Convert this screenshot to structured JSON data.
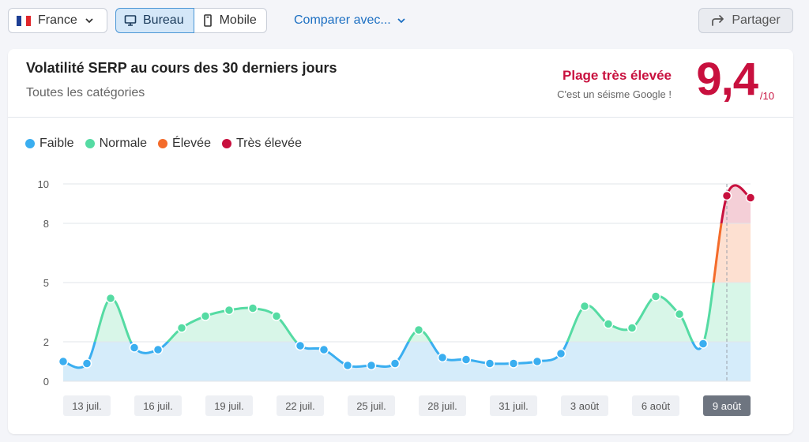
{
  "toolbar": {
    "country": "France",
    "device_desktop": "Bureau",
    "device_mobile": "Mobile",
    "compare": "Comparer avec...",
    "share": "Partager"
  },
  "card": {
    "title": "Volatilité SERP au cours des 30 derniers jours",
    "subtitle": "Toutes les catégories",
    "range_label": "Plage très élevée",
    "range_sub": "C'est un séisme Google !",
    "score": "9,4",
    "score_den": "/10"
  },
  "legend": [
    {
      "label": "Faible",
      "color": "#3aaef0"
    },
    {
      "label": "Normale",
      "color": "#55dba3"
    },
    {
      "label": "Élevée",
      "color": "#f46b2a"
    },
    {
      "label": "Très élevée",
      "color": "#c8103e"
    }
  ],
  "chart_data": {
    "type": "line",
    "y_ticks": [
      0,
      2,
      5,
      8,
      10
    ],
    "ylim": [
      0,
      10
    ],
    "x_labels": [
      "13 juil.",
      "16 juil.",
      "19 juil.",
      "22 juil.",
      "25 juil.",
      "28 juil.",
      "31 juil.",
      "3 août",
      "6 août",
      "9 août"
    ],
    "highlighted_label": "9 août",
    "bands": [
      {
        "from": 0,
        "to": 2,
        "color": "#3aaef0",
        "fill": "#d5ecfa"
      },
      {
        "from": 2,
        "to": 5,
        "color": "#55dba3",
        "fill": "#d8f6e8"
      },
      {
        "from": 5,
        "to": 8,
        "color": "#f46b2a",
        "fill": "#fde0d1"
      },
      {
        "from": 8,
        "to": 10,
        "color": "#c8103e",
        "fill": "#f4cfd7"
      }
    ],
    "values": [
      1.0,
      0.9,
      4.2,
      1.7,
      1.6,
      2.7,
      3.3,
      3.6,
      3.7,
      3.3,
      1.8,
      1.6,
      0.8,
      0.8,
      0.9,
      2.6,
      1.2,
      1.1,
      0.9,
      0.9,
      1.0,
      1.4,
      3.8,
      2.9,
      2.7,
      4.3,
      3.4,
      1.9,
      9.4,
      9.3
    ],
    "points_shown": [
      true,
      true,
      true,
      true,
      true,
      true,
      true,
      true,
      true,
      true,
      true,
      true,
      true,
      true,
      true,
      true,
      true,
      true,
      true,
      true,
      true,
      true,
      true,
      true,
      true,
      true,
      true,
      true,
      true,
      true
    ]
  }
}
